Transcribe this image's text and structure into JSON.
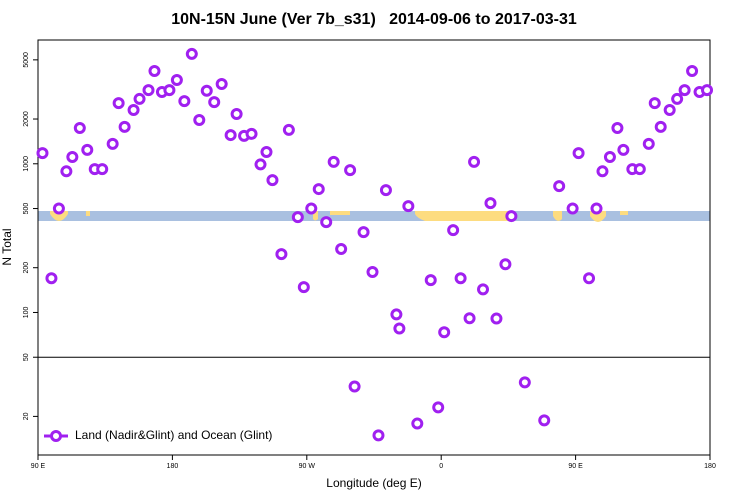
{
  "chart_data": {
    "type": "scatter",
    "title": "10N-15N June (Ver 7b_s31)   2014-09-06 to 2017-03-31",
    "x_label": "Longitude (deg E)",
    "y_label": "N Total",
    "log_y": true,
    "legend_position": "bottom-left",
    "hline": 50,
    "xlim": [
      90,
      540
    ],
    "ylim": [
      11,
      6800
    ],
    "xticks": [
      {
        "value": 90,
        "label": "90 E"
      },
      {
        "value": 180,
        "label": "180"
      },
      {
        "value": 270,
        "label": "90 W"
      },
      {
        "value": 360,
        "label": "0"
      },
      {
        "value": 450,
        "label": "90 E"
      },
      {
        "value": 540,
        "label": "180"
      }
    ],
    "yticks": [
      20,
      50,
      100,
      200,
      500,
      1000,
      2000,
      5000
    ],
    "series": [
      {
        "name": "Land (Nadir&Glint) and Ocean (Glint)",
        "color": "#a020f0",
        "x": [
          93,
          99,
          104,
          109,
          113,
          118,
          123,
          128,
          133,
          140,
          144,
          148,
          154,
          158,
          164,
          168,
          173,
          178,
          183,
          188,
          193,
          198,
          203,
          208,
          213,
          219,
          223,
          228,
          233,
          239,
          243,
          247,
          253,
          258,
          264,
          268,
          273,
          278,
          283,
          288,
          293,
          299,
          302,
          308,
          314,
          318,
          323,
          330,
          332,
          338,
          344,
          353,
          358,
          362,
          368,
          373,
          379,
          382,
          388,
          393,
          397,
          403,
          407,
          416,
          429,
          439,
          448,
          452,
          459,
          464,
          468,
          473,
          478,
          482,
          488,
          493,
          499,
          503,
          507,
          513,
          518,
          523,
          528,
          533,
          538
        ],
        "values": [
          1180,
          170,
          500,
          890,
          1110,
          1740,
          1240,
          920,
          920,
          1360,
          2560,
          1770,
          2300,
          2730,
          3130,
          4210,
          3040,
          3130,
          3660,
          2640,
          5480,
          1970,
          3100,
          2600,
          3440,
          1560,
          2160,
          1540,
          1590,
          990,
          1200,
          776,
          247,
          1690,
          438,
          148,
          500,
          676,
          405,
          1030,
          267,
          907,
          31.8,
          347,
          187,
          14.9,
          665,
          97,
          78,
          519,
          17.9,
          165,
          23,
          73.6,
          358,
          170,
          91.4,
          1030,
          143,
          544,
          91,
          211,
          445,
          33.9,
          18.8,
          708,
          500,
          1180,
          170,
          500,
          890,
          1110,
          1740,
          1240,
          920,
          920,
          1360,
          2560,
          1770,
          2300,
          2730,
          3130,
          4210,
          3040,
          3130
        ]
      }
    ]
  }
}
